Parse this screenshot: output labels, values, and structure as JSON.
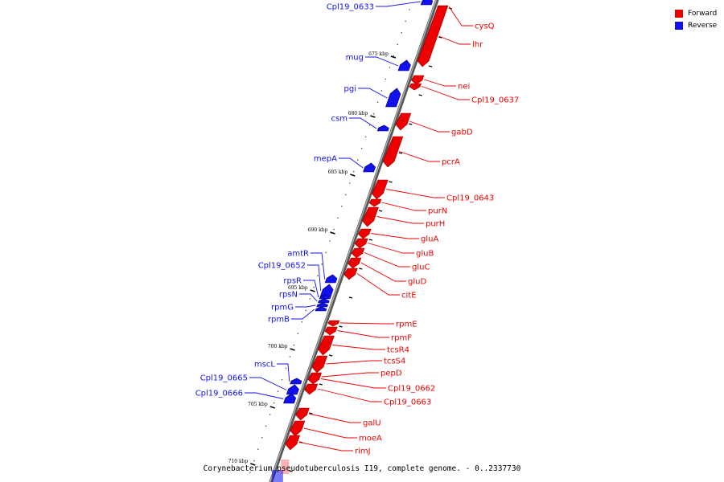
{
  "caption": "Corynebacterium pseudotuberculosis I19, complete genome. - 0..2337730",
  "legend": {
    "forward": {
      "label": "Forward",
      "color": "#ee0000"
    },
    "reverse": {
      "label": "Reverse",
      "color": "#1111ee"
    }
  },
  "colors": {
    "forward": "#ee0000",
    "reverse": "#1111ee",
    "backbone": "#888888"
  },
  "kbp_ticks": [
    "675 kbp",
    "680 kbp",
    "685 kbp",
    "690 kbp",
    "695 kbp",
    "700 kbp",
    "705 kbp",
    "710 kbp"
  ],
  "genes": [
    {
      "label": "Cpl19_0633",
      "strand": "reverse"
    },
    {
      "label": "cysQ",
      "strand": "forward"
    },
    {
      "label": "lhr",
      "strand": "forward"
    },
    {
      "label": "mug",
      "strand": "reverse"
    },
    {
      "label": "nei",
      "strand": "forward"
    },
    {
      "label": "Cpl19_0637",
      "strand": "forward"
    },
    {
      "label": "pgi",
      "strand": "reverse"
    },
    {
      "label": "csm",
      "strand": "reverse"
    },
    {
      "label": "gabD",
      "strand": "forward"
    },
    {
      "label": "pcrA",
      "strand": "forward"
    },
    {
      "label": "mepA",
      "strand": "reverse"
    },
    {
      "label": "Cpl19_0643",
      "strand": "forward"
    },
    {
      "label": "purN",
      "strand": "forward"
    },
    {
      "label": "purH",
      "strand": "forward"
    },
    {
      "label": "gluA",
      "strand": "forward"
    },
    {
      "label": "gluB",
      "strand": "forward"
    },
    {
      "label": "gluC",
      "strand": "forward"
    },
    {
      "label": "gluD",
      "strand": "forward"
    },
    {
      "label": "citE",
      "strand": "forward"
    },
    {
      "label": "amtR",
      "strand": "reverse"
    },
    {
      "label": "Cpl19_0652",
      "strand": "reverse"
    },
    {
      "label": "rpsR",
      "strand": "reverse"
    },
    {
      "label": "rpsN",
      "strand": "reverse"
    },
    {
      "label": "rpmG",
      "strand": "reverse"
    },
    {
      "label": "rpmB",
      "strand": "reverse"
    },
    {
      "label": "rpmE",
      "strand": "forward"
    },
    {
      "label": "rpmF",
      "strand": "forward"
    },
    {
      "label": "tcsR4",
      "strand": "forward"
    },
    {
      "label": "tcsS4",
      "strand": "forward"
    },
    {
      "label": "pepD",
      "strand": "forward"
    },
    {
      "label": "mscL",
      "strand": "reverse"
    },
    {
      "label": "Cpl19_0665",
      "strand": "reverse"
    },
    {
      "label": "Cpl19_0662",
      "strand": "forward"
    },
    {
      "label": "Cpl19_0666",
      "strand": "reverse"
    },
    {
      "label": "Cpl19_0663",
      "strand": "forward"
    },
    {
      "label": "galU",
      "strand": "forward"
    },
    {
      "label": "moeA",
      "strand": "forward"
    },
    {
      "label": "rimJ",
      "strand": "forward"
    }
  ]
}
